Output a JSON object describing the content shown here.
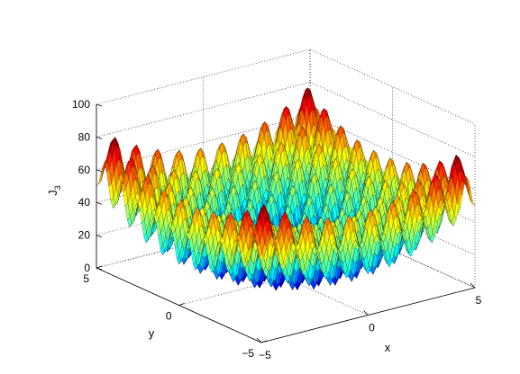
{
  "chart_data": {
    "type": "surface",
    "function": "20 + x^2 - 10cos(2*pi*x) + y^2 - 10cos(2*pi*y)",
    "xlabel": "x",
    "ylabel": "y",
    "zlabel": "J",
    "zlabel_subscript": "3",
    "xlim": [
      -5,
      5
    ],
    "ylim": [
      -5,
      5
    ],
    "zlim": [
      0,
      100
    ],
    "xticks": [
      -5,
      0,
      5
    ],
    "yticks": [
      -5,
      0,
      5
    ],
    "zticks": [
      0,
      20,
      40,
      60,
      80,
      100
    ],
    "xtick_labels": [
      "−5",
      "0",
      "5"
    ],
    "ytick_labels": [
      "−5",
      "0",
      "5"
    ],
    "ztick_labels": [
      "0",
      "20",
      "40",
      "60",
      "80",
      "100"
    ],
    "grid": true,
    "colormap": "jet",
    "colormap_colors": [
      "#00008f",
      "#0000ff",
      "#00ffff",
      "#ffff00",
      "#ff0000",
      "#800000"
    ],
    "edge_color": "#000000"
  }
}
